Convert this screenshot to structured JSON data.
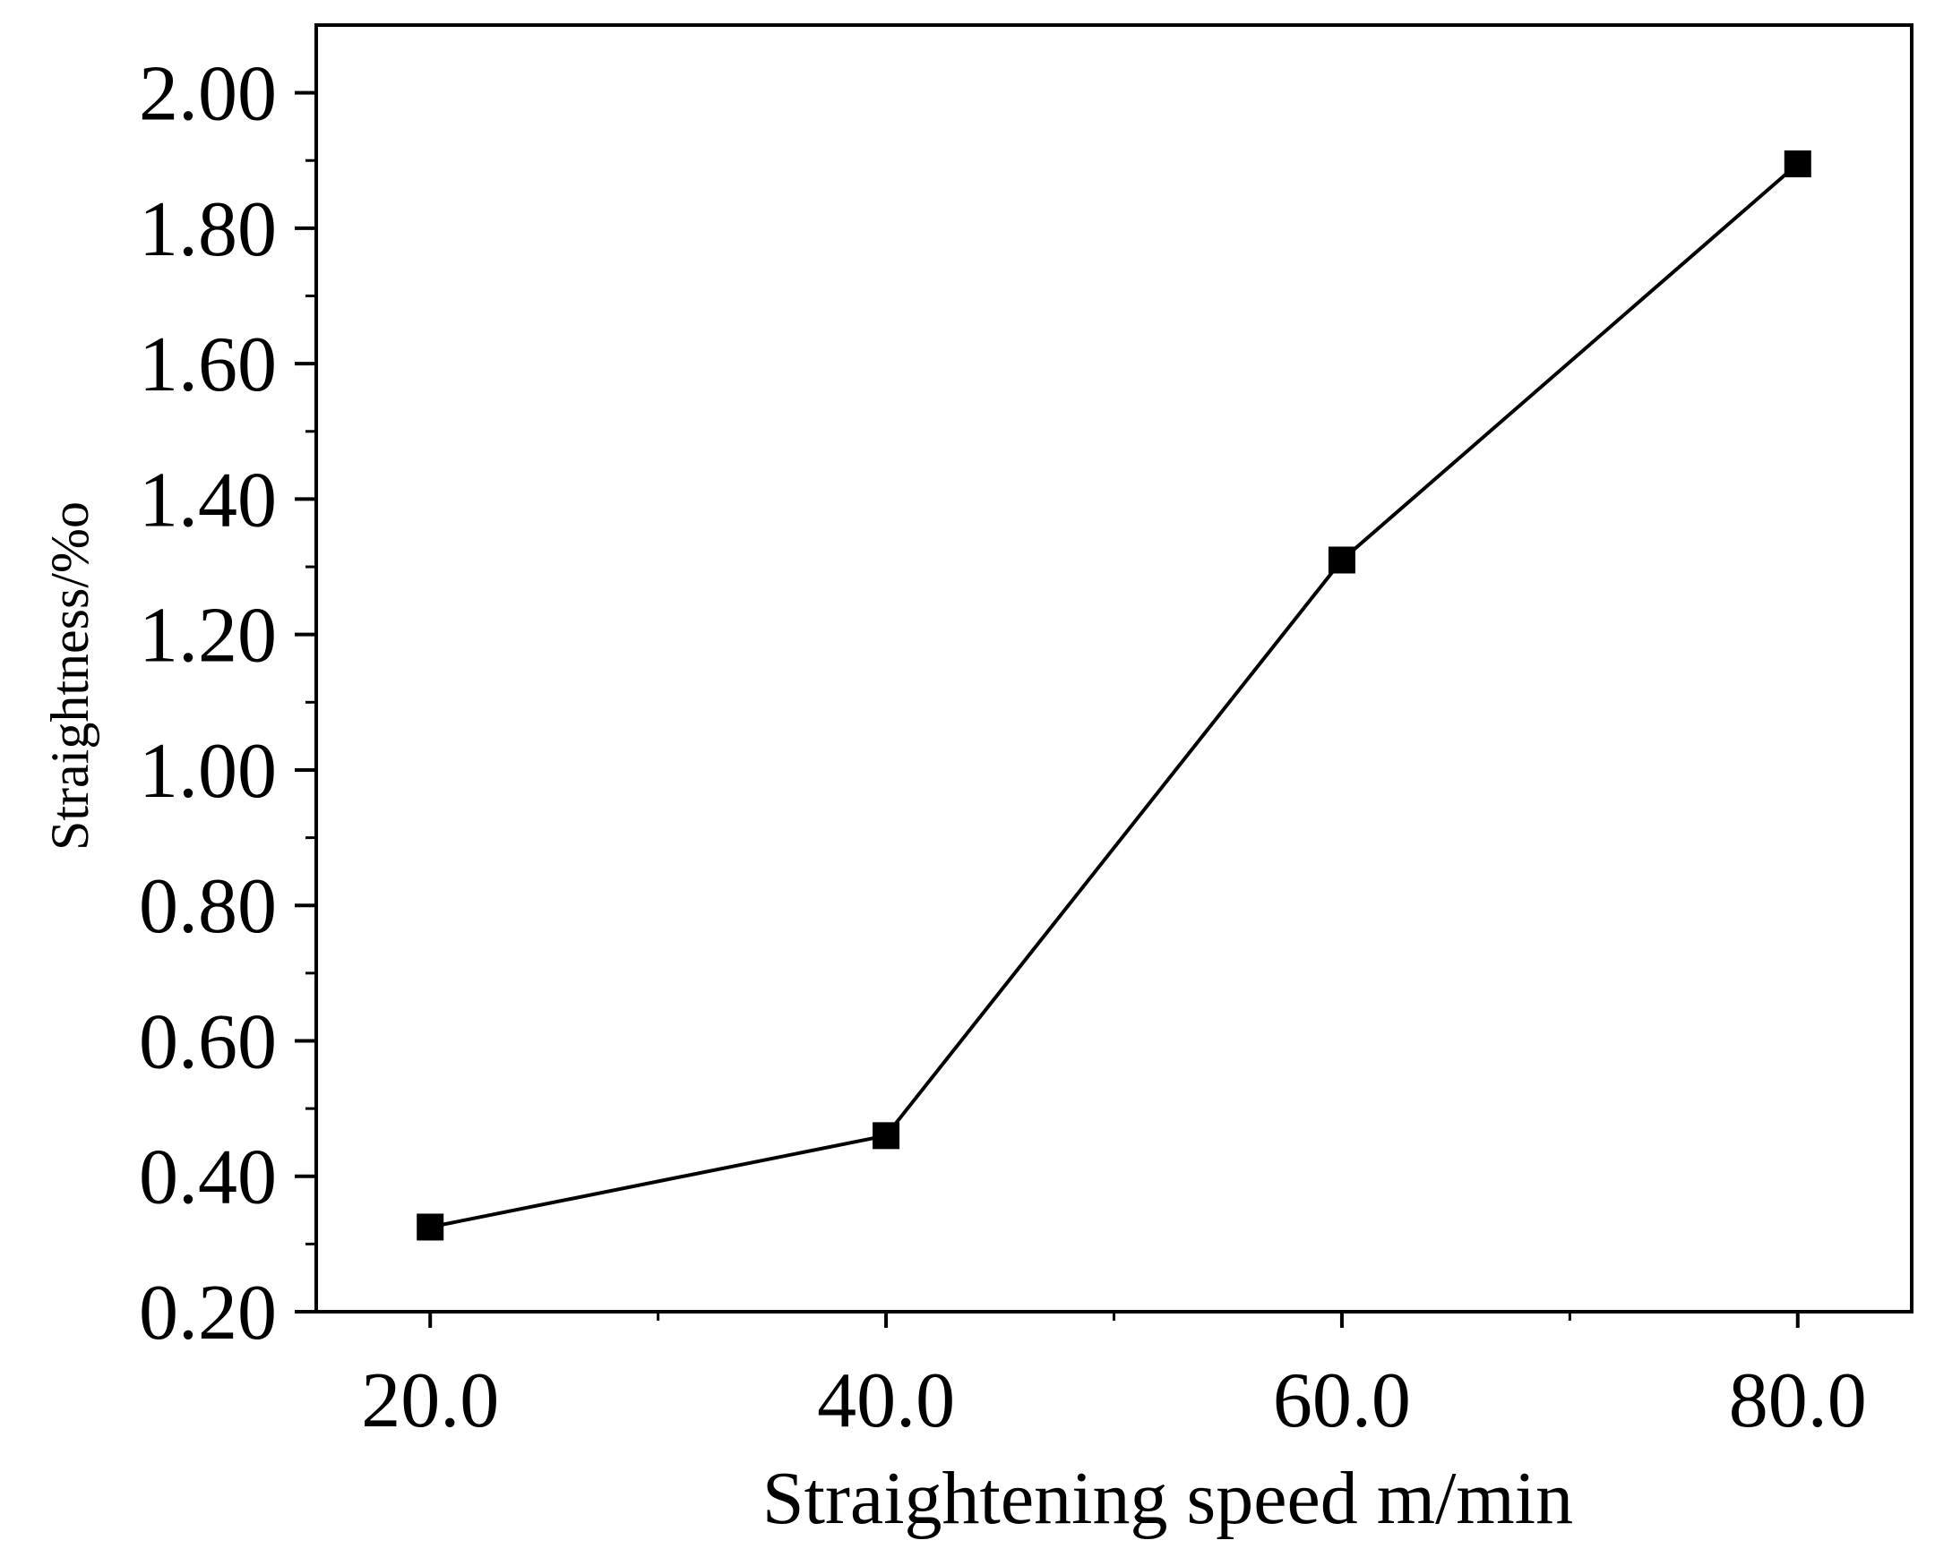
{
  "chart_data": {
    "type": "line",
    "title": "",
    "xlabel": "Straightening speed m/min",
    "ylabel": "Straightness/%o",
    "x": [
      20.0,
      40.0,
      60.0,
      80.0
    ],
    "series": [
      {
        "name": "Straightness",
        "values": [
          0.325,
          0.46,
          1.31,
          1.895
        ],
        "marker": "square",
        "color": "#000000"
      }
    ],
    "xlim": [
      15.0,
      85.0
    ],
    "ylim": [
      0.2,
      2.1
    ],
    "xticks": [
      20.0,
      40.0,
      60.0,
      80.0
    ],
    "xtick_labels": [
      "20.0",
      "40.0",
      "60.0",
      "80.0"
    ],
    "xminor_ticks": [
      30.0,
      50.0,
      70.0
    ],
    "yticks": [
      0.2,
      0.4,
      0.6,
      0.8,
      1.0,
      1.2,
      1.4,
      1.6,
      1.8,
      2.0
    ],
    "ytick_labels": [
      "0.20",
      "0.40",
      "0.60",
      "0.80",
      "1.00",
      "1.20",
      "1.40",
      "1.60",
      "1.80",
      "2.00"
    ],
    "yminor_ticks": [
      0.3,
      0.5,
      0.7,
      0.9,
      1.1,
      1.3,
      1.5,
      1.7,
      1.9
    ],
    "grid": false,
    "legend": "none"
  },
  "colors": {
    "axis": "#000000",
    "line": "#000000",
    "marker": "#000000",
    "background": "#ffffff"
  }
}
